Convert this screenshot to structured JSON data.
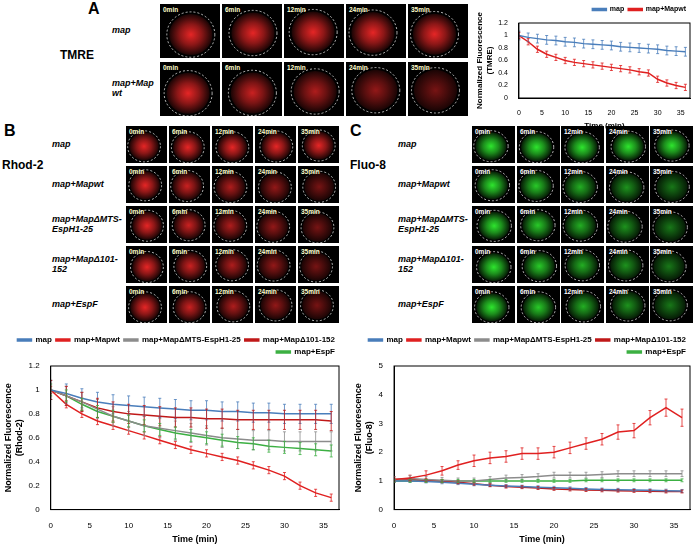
{
  "panels": [
    {
      "label": "A",
      "title": "TMRE",
      "rows": [
        "map",
        "map+Mapwt"
      ],
      "time_labels": [
        "0min",
        "6min",
        "12min",
        "24min",
        "35min"
      ]
    },
    {
      "label": "B",
      "title": "Rhod-2",
      "rows": [
        "map",
        "map+Mapwt",
        "map+MapΔMTS-EspH1-25",
        "map+MapΔ101-152",
        "map+EspF"
      ],
      "time_labels": [
        "0min",
        "6min",
        "12min",
        "24min",
        "35min"
      ]
    },
    {
      "label": "C",
      "title": "Fluo-8",
      "rows": [
        "map",
        "map+Mapwt",
        "map+MapΔMTS-EspH1-25",
        "map+MapΔ101-152",
        "map+EspF"
      ],
      "time_labels": [
        "0min",
        "6min",
        "12min",
        "24min",
        "35min"
      ]
    }
  ],
  "chart_data": [
    {
      "type": "line",
      "x_label": "Time (min)",
      "y_label": [
        "Normalized Fluorescence",
        "(TMRE)"
      ],
      "x": [
        0,
        2,
        4,
        6,
        8,
        10,
        12,
        14,
        16,
        18,
        20,
        22,
        24,
        26,
        28,
        30,
        32,
        34,
        36
      ],
      "xlim": [
        0,
        37
      ],
      "xticks": [
        0,
        5,
        10,
        15,
        20,
        25,
        30,
        35
      ],
      "ylim": [
        0,
        1.2
      ],
      "yticks": [
        0,
        0.2,
        0.4,
        0.6,
        0.8,
        1,
        1.2
      ],
      "grid": false,
      "legend": "top right",
      "series": [
        {
          "name": "map",
          "color": "#4a7ebb",
          "values": [
            1.0,
            0.97,
            0.95,
            0.93,
            0.92,
            0.9,
            0.89,
            0.87,
            0.86,
            0.85,
            0.84,
            0.82,
            0.81,
            0.8,
            0.79,
            0.78,
            0.76,
            0.75,
            0.74
          ],
          "errors": [
            0.07,
            0.07,
            0.07,
            0.07,
            0.07,
            0.07,
            0.07,
            0.07,
            0.07,
            0.07,
            0.07,
            0.07,
            0.07,
            0.07,
            0.07,
            0.07,
            0.07,
            0.07,
            0.07
          ]
        },
        {
          "name": "map+Mapwt",
          "color": "#e02020",
          "values": [
            1.0,
            0.9,
            0.78,
            0.7,
            0.65,
            0.6,
            0.57,
            0.55,
            0.53,
            0.51,
            0.49,
            0.47,
            0.45,
            0.42,
            0.4,
            0.3,
            0.24,
            0.2,
            0.17
          ],
          "errors": [
            0.05,
            0.05,
            0.05,
            0.05,
            0.05,
            0.05,
            0.05,
            0.05,
            0.05,
            0.05,
            0.05,
            0.05,
            0.05,
            0.05,
            0.05,
            0.05,
            0.05,
            0.05,
            0.05
          ]
        }
      ]
    },
    {
      "type": "line",
      "x_label": "Time (min)",
      "y_label": [
        "Normalized Fluorescence",
        "(Rhod-2)"
      ],
      "x": [
        0,
        2,
        4,
        6,
        8,
        10,
        12,
        14,
        16,
        18,
        20,
        22,
        24,
        26,
        28,
        30,
        32,
        34,
        36
      ],
      "xlim": [
        0,
        37
      ],
      "xticks": [
        0,
        5,
        10,
        15,
        20,
        25,
        30,
        35
      ],
      "ylim": [
        0,
        1.2
      ],
      "yticks": [
        0,
        0.2,
        0.4,
        0.6,
        0.8,
        1,
        1.2
      ],
      "grid": false,
      "legend": "top right",
      "series": [
        {
          "name": "map",
          "color": "#4a7ebb",
          "values": [
            1.0,
            0.97,
            0.93,
            0.9,
            0.88,
            0.87,
            0.86,
            0.85,
            0.84,
            0.83,
            0.83,
            0.82,
            0.82,
            0.81,
            0.81,
            0.8,
            0.8,
            0.8,
            0.8
          ],
          "errors": [
            0.08,
            0.08,
            0.08,
            0.08,
            0.08,
            0.08,
            0.08,
            0.08,
            0.08,
            0.08,
            0.08,
            0.08,
            0.08,
            0.08,
            0.08,
            0.08,
            0.08,
            0.08,
            0.08
          ]
        },
        {
          "name": "map+Mapwt",
          "color": "#e02020",
          "values": [
            1.0,
            0.88,
            0.8,
            0.74,
            0.7,
            0.66,
            0.62,
            0.58,
            0.54,
            0.5,
            0.47,
            0.44,
            0.41,
            0.37,
            0.33,
            0.28,
            0.2,
            0.14,
            0.1
          ],
          "errors": [
            0.03,
            0.03,
            0.03,
            0.03,
            0.03,
            0.03,
            0.03,
            0.03,
            0.03,
            0.03,
            0.03,
            0.03,
            0.03,
            0.03,
            0.03,
            0.03,
            0.03,
            0.03,
            0.03
          ]
        },
        {
          "name": "map+MapΔMTS-EspH1-25",
          "color": "#8c8c8c",
          "values": [
            1.0,
            0.95,
            0.9,
            0.84,
            0.78,
            0.74,
            0.7,
            0.68,
            0.66,
            0.64,
            0.62,
            0.6,
            0.59,
            0.58,
            0.58,
            0.57,
            0.57,
            0.57,
            0.57
          ],
          "errors": [
            0.08,
            0.08,
            0.08,
            0.08,
            0.08,
            0.08,
            0.08,
            0.08,
            0.08,
            0.08,
            0.08,
            0.08,
            0.08,
            0.08,
            0.08,
            0.08,
            0.08,
            0.08,
            0.08
          ]
        },
        {
          "name": "map+MapΔ101-152",
          "color": "#c01818",
          "values": [
            1.0,
            0.95,
            0.9,
            0.85,
            0.82,
            0.8,
            0.79,
            0.78,
            0.77,
            0.77,
            0.76,
            0.76,
            0.75,
            0.75,
            0.75,
            0.75,
            0.75,
            0.75,
            0.74
          ],
          "errors": [
            0.08,
            0.08,
            0.08,
            0.08,
            0.08,
            0.08,
            0.08,
            0.08,
            0.08,
            0.08,
            0.08,
            0.08,
            0.08,
            0.08,
            0.08,
            0.08,
            0.08,
            0.08,
            0.08
          ]
        },
        {
          "name": "map+EspF",
          "color": "#3cb043",
          "values": [
            1.0,
            0.95,
            0.88,
            0.82,
            0.78,
            0.74,
            0.7,
            0.67,
            0.64,
            0.62,
            0.6,
            0.58,
            0.56,
            0.55,
            0.53,
            0.52,
            0.51,
            0.5,
            0.49
          ],
          "errors": [
            0.05,
            0.05,
            0.05,
            0.05,
            0.05,
            0.05,
            0.05,
            0.05,
            0.05,
            0.05,
            0.05,
            0.05,
            0.05,
            0.05,
            0.05,
            0.05,
            0.05,
            0.05,
            0.05
          ]
        }
      ]
    },
    {
      "type": "line",
      "x_label": "Time (min)",
      "y_label": [
        "Normalized Fluorescence",
        "(Fluo-8)"
      ],
      "x": [
        0,
        2,
        4,
        6,
        8,
        10,
        12,
        14,
        16,
        18,
        20,
        22,
        24,
        26,
        28,
        30,
        32,
        34,
        36
      ],
      "xlim": [
        0,
        37
      ],
      "xticks": [
        0,
        5,
        10,
        15,
        20,
        25,
        30,
        35
      ],
      "ylim": [
        0,
        5
      ],
      "yticks": [
        0,
        1,
        2,
        3,
        4,
        5
      ],
      "grid": false,
      "legend": "top right",
      "series": [
        {
          "name": "map",
          "color": "#4a7ebb",
          "values": [
            1.0,
            1.0,
            0.98,
            0.95,
            0.92,
            0.88,
            0.85,
            0.82,
            0.8,
            0.78,
            0.76,
            0.74,
            0.72,
            0.7,
            0.69,
            0.68,
            0.67,
            0.66,
            0.65
          ],
          "errors": [
            0.05,
            0.05,
            0.05,
            0.05,
            0.05,
            0.05,
            0.05,
            0.05,
            0.05,
            0.05,
            0.05,
            0.05,
            0.05,
            0.05,
            0.05,
            0.05,
            0.05,
            0.05,
            0.05
          ]
        },
        {
          "name": "map+Mapwt",
          "color": "#e02020",
          "values": [
            1.05,
            1.1,
            1.2,
            1.35,
            1.55,
            1.7,
            1.8,
            1.85,
            1.95,
            1.95,
            2.0,
            2.15,
            2.3,
            2.45,
            2.7,
            2.75,
            3.2,
            3.55,
            3.2
          ],
          "errors": [
            0.1,
            0.1,
            0.15,
            0.15,
            0.15,
            0.2,
            0.2,
            0.2,
            0.2,
            0.2,
            0.2,
            0.2,
            0.2,
            0.2,
            0.25,
            0.25,
            0.25,
            0.3,
            0.3
          ]
        },
        {
          "name": "map+MapΔMTS-EspH1-25",
          "color": "#8c8c8c",
          "values": [
            1.05,
            1.08,
            1.05,
            1.02,
            1.0,
            1.0,
            1.05,
            1.1,
            1.12,
            1.15,
            1.2,
            1.2,
            1.2,
            1.22,
            1.25,
            1.25,
            1.25,
            1.25,
            1.25
          ],
          "errors": [
            0.1,
            0.1,
            0.1,
            0.1,
            0.1,
            0.1,
            0.1,
            0.1,
            0.1,
            0.1,
            0.1,
            0.1,
            0.1,
            0.1,
            0.1,
            0.1,
            0.1,
            0.1,
            0.1
          ]
        },
        {
          "name": "map+MapΔ101-152",
          "color": "#c01818",
          "values": [
            1.05,
            1.05,
            1.02,
            1.0,
            0.95,
            0.9,
            0.85,
            0.8,
            0.78,
            0.75,
            0.72,
            0.7,
            0.68,
            0.67,
            0.66,
            0.65,
            0.64,
            0.63,
            0.63
          ],
          "errors": [
            0.05,
            0.05,
            0.05,
            0.05,
            0.05,
            0.05,
            0.05,
            0.05,
            0.05,
            0.05,
            0.05,
            0.05,
            0.05,
            0.05,
            0.05,
            0.05,
            0.05,
            0.05,
            0.05
          ]
        },
        {
          "name": "map+EspF",
          "color": "#3cb043",
          "values": [
            1.0,
            1.0,
            1.0,
            1.0,
            1.0,
            1.0,
            1.0,
            1.0,
            1.0,
            1.0,
            1.0,
            1.0,
            1.02,
            1.02,
            1.02,
            1.02,
            1.02,
            1.02,
            1.02
          ],
          "errors": [
            0.05,
            0.05,
            0.05,
            0.05,
            0.05,
            0.05,
            0.05,
            0.05,
            0.05,
            0.05,
            0.05,
            0.05,
            0.05,
            0.05,
            0.05,
            0.05,
            0.05,
            0.05,
            0.05
          ]
        }
      ]
    }
  ]
}
